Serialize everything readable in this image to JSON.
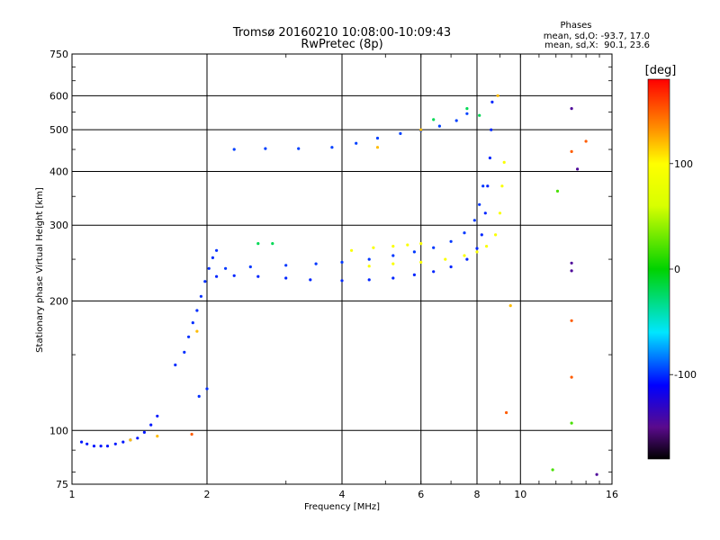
{
  "chart_data": {
    "type": "scatter",
    "title": "Tromsø 20160210 10:08:00-10:09:43",
    "subtitle": "RwPretec (8p)",
    "stats": {
      "heading": "Phases",
      "line_o": "mean, sd,O: -93.7, 17.0",
      "line_x": "mean, sd,X:  90.1, 23.6"
    },
    "xlabel": "Frequency [MHz]",
    "ylabel": "Stationary phase Virtual Height [km]",
    "x_scale": "log",
    "y_scale": "log",
    "xlim": [
      1,
      16
    ],
    "ylim": [
      75,
      750
    ],
    "x_ticks": [
      1,
      2,
      4,
      6,
      8,
      10,
      16
    ],
    "x_tick_labels": [
      "1",
      "2",
      "4",
      "6",
      "8",
      "10",
      "16"
    ],
    "y_ticks": [
      75,
      100,
      200,
      300,
      400,
      500,
      600,
      750
    ],
    "y_tick_labels": [
      "75",
      "100",
      "200",
      "300",
      "400",
      "500",
      "600",
      "750"
    ],
    "grid": true,
    "colorbar": {
      "label": "[deg]",
      "range": [
        -180,
        180
      ],
      "ticks": [
        100,
        0,
        -100
      ],
      "tick_labels": [
        "100",
        "0",
        "-100"
      ],
      "stops": [
        {
          "v": -180,
          "c": "#000000"
        },
        {
          "v": -150,
          "c": "#5a0a8c"
        },
        {
          "v": -110,
          "c": "#0000ff"
        },
        {
          "v": -60,
          "c": "#00e6ff"
        },
        {
          "v": 0,
          "c": "#00d200"
        },
        {
          "v": 60,
          "c": "#d8ff00"
        },
        {
          "v": 100,
          "c": "#ffff00"
        },
        {
          "v": 130,
          "c": "#ff9a00"
        },
        {
          "v": 180,
          "c": "#ff0000"
        }
      ]
    },
    "series": [
      {
        "phase": -105,
        "points": [
          [
            1.05,
            94
          ],
          [
            1.08,
            93
          ],
          [
            1.12,
            92
          ],
          [
            1.16,
            92
          ],
          [
            1.2,
            92
          ],
          [
            1.25,
            93
          ],
          [
            1.3,
            94
          ],
          [
            1.35,
            95
          ],
          [
            1.4,
            96
          ],
          [
            1.45,
            99
          ],
          [
            1.5,
            103
          ],
          [
            1.55,
            108
          ]
        ]
      },
      {
        "phase": -100,
        "points": [
          [
            1.7,
            142
          ],
          [
            1.78,
            152
          ],
          [
            1.82,
            165
          ],
          [
            1.86,
            178
          ],
          [
            1.9,
            190
          ],
          [
            1.94,
            205
          ],
          [
            1.98,
            222
          ],
          [
            2.02,
            238
          ],
          [
            2.06,
            252
          ],
          [
            2.1,
            262
          ],
          [
            1.92,
            120
          ],
          [
            2.0,
            125
          ]
        ]
      },
      {
        "phase": -102,
        "points": [
          [
            2.1,
            228
          ],
          [
            2.3,
            229
          ],
          [
            2.6,
            228
          ],
          [
            3.0,
            226
          ],
          [
            3.4,
            224
          ],
          [
            4.0,
            223
          ],
          [
            4.6,
            224
          ],
          [
            5.2,
            226
          ],
          [
            5.8,
            230
          ],
          [
            6.4,
            234
          ],
          [
            7.0,
            240
          ],
          [
            7.6,
            250
          ],
          [
            8.0,
            265
          ],
          [
            8.2,
            285
          ],
          [
            8.35,
            320
          ],
          [
            8.45,
            370
          ],
          [
            8.55,
            430
          ],
          [
            8.6,
            500
          ],
          [
            8.65,
            580
          ]
        ]
      },
      {
        "phase": -98,
        "points": [
          [
            2.2,
            238
          ],
          [
            2.5,
            240
          ],
          [
            3.0,
            242
          ],
          [
            3.5,
            244
          ],
          [
            4.0,
            246
          ],
          [
            4.6,
            250
          ],
          [
            5.2,
            255
          ],
          [
            5.8,
            260
          ],
          [
            6.4,
            266
          ],
          [
            7.0,
            275
          ],
          [
            7.5,
            288
          ],
          [
            7.9,
            308
          ],
          [
            8.1,
            335
          ],
          [
            8.25,
            370
          ]
        ]
      },
      {
        "phase": -96,
        "points": [
          [
            2.3,
            450
          ],
          [
            2.7,
            452
          ],
          [
            3.2,
            452
          ],
          [
            3.8,
            455
          ],
          [
            4.3,
            465
          ],
          [
            4.8,
            478
          ],
          [
            5.4,
            490
          ],
          [
            6.0,
            498
          ],
          [
            6.6,
            510
          ],
          [
            7.2,
            525
          ],
          [
            7.6,
            545
          ]
        ]
      },
      {
        "phase": 95,
        "points": [
          [
            4.2,
            262
          ],
          [
            4.7,
            266
          ],
          [
            5.2,
            268
          ],
          [
            5.6,
            270
          ],
          [
            6.0,
            272
          ],
          [
            4.6,
            241
          ],
          [
            5.2,
            244
          ],
          [
            6.0,
            246
          ],
          [
            6.8,
            250
          ],
          [
            7.5,
            255
          ],
          [
            8.0,
            260
          ],
          [
            8.4,
            268
          ],
          [
            8.8,
            285
          ],
          [
            9.0,
            320
          ],
          [
            9.1,
            370
          ],
          [
            9.2,
            420
          ]
        ]
      },
      {
        "phase": -20,
        "points": [
          [
            2.6,
            272
          ],
          [
            2.8,
            272
          ],
          [
            6.4,
            528
          ],
          [
            7.6,
            560
          ],
          [
            8.1,
            540
          ]
        ]
      },
      {
        "phase": 120,
        "points": [
          [
            1.35,
            95
          ],
          [
            1.55,
            97
          ],
          [
            1.9,
            170
          ],
          [
            4.8,
            455
          ],
          [
            6.0,
            500
          ],
          [
            8.9,
            600
          ],
          [
            9.5,
            195
          ]
        ]
      },
      {
        "phase": -145,
        "points": [
          [
            13.0,
            560
          ],
          [
            13.0,
            245
          ],
          [
            13.0,
            235
          ],
          [
            14.8,
            79
          ],
          [
            13.4,
            405
          ]
        ]
      },
      {
        "phase": 150,
        "points": [
          [
            13.0,
            180
          ],
          [
            13.0,
            445
          ],
          [
            9.3,
            110
          ],
          [
            13.0,
            133
          ],
          [
            14.0,
            470
          ],
          [
            1.85,
            98
          ]
        ]
      },
      {
        "phase": 20,
        "points": [
          [
            11.8,
            81
          ],
          [
            12.1,
            360
          ],
          [
            13.0,
            104
          ]
        ]
      }
    ]
  }
}
